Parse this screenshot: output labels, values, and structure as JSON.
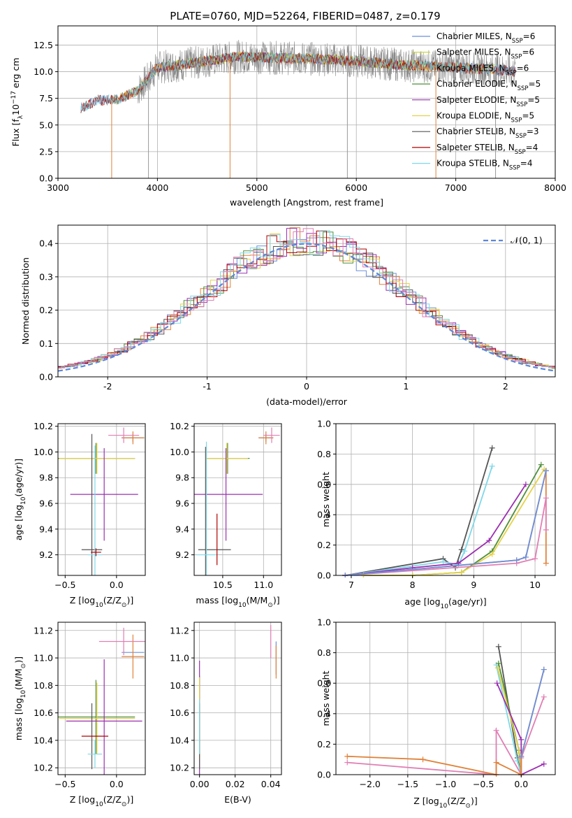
{
  "figure": {
    "title": "PLATE=0760, MJD=52264, FIBERID=0487, z=0.179",
    "model_colors": [
      "#6b8fdc",
      "#c7d42a",
      "#e0823a",
      "#4f8f3a",
      "#9b30b0",
      "#e6d24a",
      "#555555",
      "#b00000",
      "#7fd8e8"
    ],
    "secondary_colors": [
      "#e07fb4",
      "#888888"
    ]
  },
  "chart_data": [
    {
      "id": "spectrum",
      "type": "line",
      "xlabel": "wavelength [Angstrom, rest frame]",
      "ylabel": "Flux [f",
      "ylabel_sub": "λ",
      "ylabel_tail": "10",
      "ylabel_exp": "−17",
      "ylabel_end": " erg cm",
      "xlim": [
        3000,
        8000
      ],
      "ylim": [
        0,
        14.3
      ],
      "xticks": [
        3000,
        4000,
        5000,
        6000,
        7000,
        8000
      ],
      "yticks": [
        0.0,
        2.5,
        5.0,
        7.5,
        10.0,
        12.5
      ],
      "ytick_labels": [
        "0.0",
        "2.5",
        "5.0",
        "7.5",
        "10.0",
        "12.5"
      ],
      "legend": {
        "placement": "top-right",
        "entries": [
          {
            "lib": "Chabrier MILES, N",
            "sub": "SSP",
            "val": "=6"
          },
          {
            "lib": "Salpeter MILES, N",
            "sub": "SSP",
            "val": "=6"
          },
          {
            "lib": "Kroupa MILES, N",
            "sub": "SSP",
            "val": "=6"
          },
          {
            "lib": "Chabrier ELODIE, N",
            "sub": "SSP",
            "val": "=5"
          },
          {
            "lib": "Salpeter ELODIE, N",
            "sub": "SSP",
            "val": "=5"
          },
          {
            "lib": "Kroupa ELODIE, N",
            "sub": "SSP",
            "val": "=5"
          },
          {
            "lib": "Chabrier STELIB, N",
            "sub": "SSP",
            "val": "=3"
          },
          {
            "lib": "Salpeter STELIB, N",
            "sub": "SSP",
            "val": "=4"
          },
          {
            "lib": "Kroupa STELIB, N",
            "sub": "SSP",
            "val": "=4"
          }
        ]
      },
      "continuum": {
        "x": [
          3230,
          3400,
          3600,
          3800,
          4000,
          4200,
          4500,
          4800,
          5200,
          5600,
          6000,
          6500,
          7000,
          7400,
          7600
        ],
        "y": [
          6.6,
          7.3,
          7.4,
          8.2,
          10.4,
          10.6,
          11.0,
          11.4,
          11.3,
          11.2,
          11.0,
          10.6,
          10.4,
          10.2,
          10.0
        ]
      },
      "model_ranges": [
        [
          3230,
          7600
        ],
        [
          3540,
          7400
        ],
        [
          3540,
          7400
        ],
        [
          3900,
          6800
        ],
        [
          3900,
          6800
        ],
        [
          3900,
          6800
        ],
        [
          3230,
          7600
        ],
        [
          3230,
          7600
        ],
        [
          3230,
          7600
        ]
      ],
      "data_range": [
        3800,
        7600
      ],
      "spikes": [
        {
          "x": 3540,
          "y": 0.0
        },
        {
          "x": 3910,
          "y": 0.0
        },
        {
          "x": 4730,
          "y": 0.0
        },
        {
          "x": 5910,
          "y": 0.0
        },
        {
          "x": 6800,
          "y": 0.0
        },
        {
          "x": 7400,
          "y": 0.0
        }
      ]
    },
    {
      "id": "residuals",
      "type": "histogram",
      "xlabel": "(data-model)/error",
      "ylabel": "Normed distribution",
      "xlim": [
        -2.5,
        2.5
      ],
      "ylim": [
        0,
        0.455
      ],
      "xticks": [
        -2,
        -1,
        0,
        1,
        2
      ],
      "yticks": [
        0.0,
        0.1,
        0.2,
        0.3,
        0.4
      ],
      "ytick_labels": [
        "0.0",
        "0.1",
        "0.2",
        "0.3",
        "0.4"
      ],
      "bin_width": 0.1,
      "legend": {
        "placement": "top-right",
        "label": "𝒩(0, 1)"
      },
      "gaussian": {
        "mu": 0,
        "sigma": 1
      }
    },
    {
      "id": "age_vs_Z",
      "type": "scatter",
      "xlabel": "Z [log",
      "xlabel_sub": "10",
      "xlabel_tail": "(Z/Z",
      "xlabel_sun": "⊙",
      "xlabel_end": ")]",
      "ylabel": "age  [log",
      "ylabel_sub": "10",
      "ylabel_tail": "(age/yr)]",
      "xlim": [
        -0.57,
        0.28
      ],
      "ylim": [
        9.04,
        10.22
      ],
      "xticks": [
        -0.5,
        0.0
      ],
      "xtick_labels": [
        "−0.5",
        "0.0"
      ],
      "yticks": [
        9.2,
        9.4,
        9.6,
        9.8,
        10.0,
        10.2
      ],
      "ytick_labels": [
        "9.2",
        "9.4",
        "9.6",
        "9.8",
        "10.0",
        "10.2"
      ],
      "points": [
        {
          "x": 0.16,
          "y": 10.11,
          "xerr": 0.11,
          "yerr": 0.03,
          "c": 0
        },
        {
          "x": 0.16,
          "y": 10.11,
          "xerr": 0.11,
          "yerr": 0.05,
          "c": 2
        },
        {
          "x": 0.07,
          "y": 10.13,
          "xerr": 0.15,
          "yerr": 0.06,
          "c": 9
        },
        {
          "x": -0.2,
          "y": 9.95,
          "xerr": 0.38,
          "yerr": 0.12,
          "c": 3
        },
        {
          "x": -0.19,
          "y": 9.95,
          "xerr": 0.37,
          "yerr": 0.12,
          "c": 5
        },
        {
          "x": -0.12,
          "y": 9.67,
          "xerr": 0.33,
          "yerr": 0.36,
          "c": 4
        },
        {
          "x": -0.24,
          "y": 9.24,
          "xerr": 0.0,
          "yerr": 0.9,
          "c": 6
        },
        {
          "x": -0.24,
          "y": 9.24,
          "xerr": 0.1,
          "yerr": 0.0,
          "c": 6
        },
        {
          "x": -0.21,
          "y": 9.2,
          "xerr": 0.07,
          "yerr": 0.85,
          "c": 8
        },
        {
          "x": -0.2,
          "y": 9.22,
          "xerr": 0.05,
          "yerr": 0.03,
          "c": 7
        }
      ]
    },
    {
      "id": "age_vs_mass",
      "type": "scatter",
      "xlabel": "mass [log",
      "xlabel_sub": "10",
      "xlabel_tail": "(M/M",
      "xlabel_sun": "⊙",
      "xlabel_end": ")]",
      "ylabel": "",
      "xlim": [
        10.15,
        11.22
      ],
      "ylim": [
        9.04,
        10.22
      ],
      "xticks": [
        10.5,
        11.0
      ],
      "xtick_labels": [
        "10.5",
        "11.0"
      ],
      "yticks": [
        9.2,
        9.4,
        9.6,
        9.8,
        10.0,
        10.2
      ],
      "ytick_labels": [
        "9.2",
        "9.4",
        "9.6",
        "9.8",
        "10.0",
        "10.2"
      ],
      "points": [
        {
          "x": 11.03,
          "y": 10.11,
          "xerr": 0.09,
          "yerr": 0.03,
          "c": 0
        },
        {
          "x": 11.03,
          "y": 10.11,
          "xerr": 0.09,
          "yerr": 0.05,
          "c": 2
        },
        {
          "x": 11.1,
          "y": 10.13,
          "xerr": 0.1,
          "yerr": 0.06,
          "c": 9
        },
        {
          "x": 10.56,
          "y": 9.95,
          "xerr": 0.27,
          "yerr": 0.12,
          "c": 3
        },
        {
          "x": 10.55,
          "y": 9.95,
          "xerr": 0.26,
          "yerr": 0.12,
          "c": 5
        },
        {
          "x": 10.54,
          "y": 9.67,
          "xerr": 0.45,
          "yerr": 0.36,
          "c": 4
        },
        {
          "x": 10.29,
          "y": 9.24,
          "xerr": 0.0,
          "yerr": 0.8,
          "c": 6
        },
        {
          "x": 10.4,
          "y": 9.24,
          "xerr": 0.2,
          "yerr": 0.0,
          "c": 6
        },
        {
          "x": 10.3,
          "y": 9.2,
          "xerr": 0.12,
          "yerr": 0.88,
          "c": 8
        },
        {
          "x": 10.43,
          "y": 9.32,
          "xerr": 0.0,
          "yerr": 0.2,
          "c": 7
        }
      ]
    },
    {
      "id": "weight_vs_age",
      "type": "line",
      "xlabel": "age  [log",
      "xlabel_sub": "10",
      "xlabel_tail": "(age/yr)]",
      "ylabel": "mass weight",
      "xlim": [
        6.75,
        10.33
      ],
      "ylim": [
        0,
        1.0
      ],
      "xticks": [
        7,
        8,
        9,
        10
      ],
      "xtick_labels": [
        "7",
        "8",
        "9",
        "10"
      ],
      "yticks": [
        0.0,
        0.2,
        0.4,
        0.6,
        0.8,
        1.0
      ],
      "ytick_labels": [
        "0.0",
        "0.2",
        "0.4",
        "0.6",
        "0.8",
        "1.0"
      ],
      "series": [
        {
          "c": 6,
          "x": [
            6.9,
            8.5,
            8.7,
            8.8,
            9.3
          ],
          "y": [
            0.0,
            0.11,
            0.05,
            0.17,
            0.84
          ]
        },
        {
          "c": 8,
          "x": [
            6.9,
            8.5,
            8.75,
            8.85,
            9.3
          ],
          "y": [
            0.0,
            0.09,
            0.07,
            0.16,
            0.72
          ]
        },
        {
          "c": 4,
          "x": [
            6.9,
            8.0,
            8.75,
            9.25,
            9.85
          ],
          "y": [
            0.0,
            0.05,
            0.08,
            0.23,
            0.6
          ]
        },
        {
          "c": 3,
          "x": [
            7.2,
            8.0,
            8.8,
            9.3,
            10.1
          ],
          "y": [
            0.0,
            0.0,
            0.02,
            0.16,
            0.73
          ]
        },
        {
          "c": 5,
          "x": [
            7.2,
            8.0,
            8.8,
            9.3,
            10.15
          ],
          "y": [
            0.0,
            0.0,
            0.02,
            0.14,
            0.7
          ]
        },
        {
          "c": 2,
          "x": [
            6.9,
            9.7,
            9.85,
            10.18,
            10.18
          ],
          "y": [
            0.0,
            0.1,
            0.12,
            0.69,
            0.08
          ]
        },
        {
          "c": 9,
          "x": [
            6.9,
            9.7,
            10.0,
            10.18,
            10.18
          ],
          "y": [
            0.0,
            0.08,
            0.11,
            0.51,
            0.3
          ]
        },
        {
          "c": 0,
          "x": [
            6.9,
            9.7,
            9.85,
            10.18
          ],
          "y": [
            0.0,
            0.1,
            0.12,
            0.69
          ]
        }
      ]
    },
    {
      "id": "mass_vs_Z",
      "type": "scatter",
      "xlabel": "Z [log",
      "xlabel_sub": "10",
      "xlabel_tail": "(Z/Z",
      "xlabel_sun": "⊙",
      "xlabel_end": ")]",
      "ylabel": "mass [log",
      "ylabel_sub": "10",
      "ylabel_tail": "(M/M",
      "ylabel_sun": "⊙",
      "ylabel_end": ")]",
      "xlim": [
        -0.57,
        0.28
      ],
      "ylim": [
        10.15,
        11.26
      ],
      "xticks": [
        -0.5,
        0.0
      ],
      "xtick_labels": [
        "−0.5",
        "0.0"
      ],
      "yticks": [
        10.2,
        10.4,
        10.6,
        10.8,
        11.0,
        11.2
      ],
      "ytick_labels": [
        "10.2",
        "10.4",
        "10.6",
        "10.8",
        "11.0",
        "11.2"
      ],
      "points": [
        {
          "x": 0.16,
          "y": 11.04,
          "xerr": 0.11,
          "yerr": 0.0,
          "c": 0
        },
        {
          "x": 0.16,
          "y": 11.01,
          "xerr": 0.11,
          "yerr": 0.16,
          "c": 2
        },
        {
          "x": 0.07,
          "y": 11.12,
          "xerr": 0.24,
          "yerr": 0.1,
          "c": 9
        },
        {
          "x": -0.2,
          "y": 10.57,
          "xerr": 0.38,
          "yerr": 0.27,
          "c": 3
        },
        {
          "x": -0.19,
          "y": 10.56,
          "xerr": 0.37,
          "yerr": 0.26,
          "c": 5
        },
        {
          "x": -0.12,
          "y": 10.54,
          "xerr": 0.37,
          "yerr": 0.45,
          "c": 4
        },
        {
          "x": -0.24,
          "y": 10.43,
          "xerr": 0.0,
          "yerr": 0.24,
          "c": 6
        },
        {
          "x": -0.21,
          "y": 10.43,
          "xerr": 0.13,
          "yerr": 0.0,
          "c": 7
        },
        {
          "x": -0.21,
          "y": 10.3,
          "xerr": 0.07,
          "yerr": 0.1,
          "c": 8
        }
      ]
    },
    {
      "id": "mass_vs_EBV",
      "type": "scatter",
      "xlabel": "E(B-V)",
      "ylabel": "",
      "xlim": [
        -0.003,
        0.046
      ],
      "ylim": [
        10.15,
        11.26
      ],
      "xticks": [
        0.0,
        0.02,
        0.04
      ],
      "xtick_labels": [
        "0.00",
        "0.02",
        "0.04"
      ],
      "yticks": [
        10.2,
        10.4,
        10.6,
        10.8,
        11.0,
        11.2
      ],
      "ytick_labels": [
        "10.2",
        "10.4",
        "10.6",
        "10.8",
        "11.0",
        "11.2"
      ],
      "points": [
        {
          "x": 0.0,
          "y": 10.57,
          "xerr": 0.0,
          "yerr": 0.3,
          "c": 3
        },
        {
          "x": 0.0,
          "y": 10.54,
          "xerr": 0.0,
          "yerr": 0.44,
          "c": 4
        },
        {
          "x": 0.0,
          "y": 10.56,
          "xerr": 0.0,
          "yerr": 0.3,
          "c": 5
        },
        {
          "x": 0.0,
          "y": 10.43,
          "xerr": 0.0,
          "yerr": 0.24,
          "c": 6
        },
        {
          "x": 0.0,
          "y": 10.5,
          "xerr": 0.0,
          "yerr": 0.2,
          "c": 8
        },
        {
          "x": 0.04,
          "y": 11.12,
          "xerr": 0.0,
          "yerr": 0.12,
          "c": 9
        },
        {
          "x": 0.043,
          "y": 11.0,
          "xerr": 0.0,
          "yerr": 0.12,
          "c": 0
        },
        {
          "x": 0.043,
          "y": 10.97,
          "xerr": 0.0,
          "yerr": 0.12,
          "c": 2
        }
      ]
    },
    {
      "id": "weight_vs_Z",
      "type": "line",
      "xlabel": "Z [log",
      "xlabel_sub": "10",
      "xlabel_tail": "(Z/Z",
      "xlabel_sun": "⊙",
      "xlabel_end": ")]",
      "ylabel": "mass weight",
      "xlim": [
        -2.45,
        0.45
      ],
      "ylim": [
        0,
        1.0
      ],
      "xticks": [
        -2.0,
        -1.5,
        -1.0,
        -0.5,
        0.0
      ],
      "xtick_labels": [
        "−2.0",
        "−1.5",
        "−1.0",
        "−0.5",
        "0.0"
      ],
      "yticks": [
        0.0,
        0.2,
        0.4,
        0.6,
        0.8,
        1.0
      ],
      "ytick_labels": [
        "0.0",
        "0.2",
        "0.4",
        "0.6",
        "0.8",
        "1.0"
      ],
      "series": [
        {
          "c": 6,
          "x": [
            -0.3,
            -0.05,
            0.0
          ],
          "y": [
            0.84,
            0.11,
            0.0
          ]
        },
        {
          "c": 8,
          "x": [
            -0.33,
            -0.05,
            0.0
          ],
          "y": [
            0.72,
            0.09,
            0.0
          ]
        },
        {
          "c": 3,
          "x": [
            -0.3,
            -0.03,
            0.0
          ],
          "y": [
            0.73,
            0.16,
            0.0
          ]
        },
        {
          "c": 5,
          "x": [
            -0.31,
            -0.02,
            0.0
          ],
          "y": [
            0.7,
            0.14,
            0.0
          ]
        },
        {
          "c": 4,
          "x": [
            -0.32,
            0.0,
            0.0,
            0.3
          ],
          "y": [
            0.6,
            0.23,
            0.0,
            0.07
          ]
        },
        {
          "c": 9,
          "x": [
            -2.3,
            -0.33,
            -0.33,
            0.0,
            0.0,
            0.3
          ],
          "y": [
            0.08,
            0.0,
            0.29,
            0.0,
            0.11,
            0.51
          ]
        },
        {
          "c": 2,
          "x": [
            -2.3,
            -1.3,
            -0.33,
            -0.33,
            0.0,
            0.0,
            0.3
          ],
          "y": [
            0.12,
            0.1,
            0.0,
            0.08,
            0.0,
            0.12,
            0.69
          ]
        },
        {
          "c": 0,
          "x": [
            0.0,
            0.3
          ],
          "y": [
            0.12,
            0.69
          ]
        }
      ]
    }
  ]
}
